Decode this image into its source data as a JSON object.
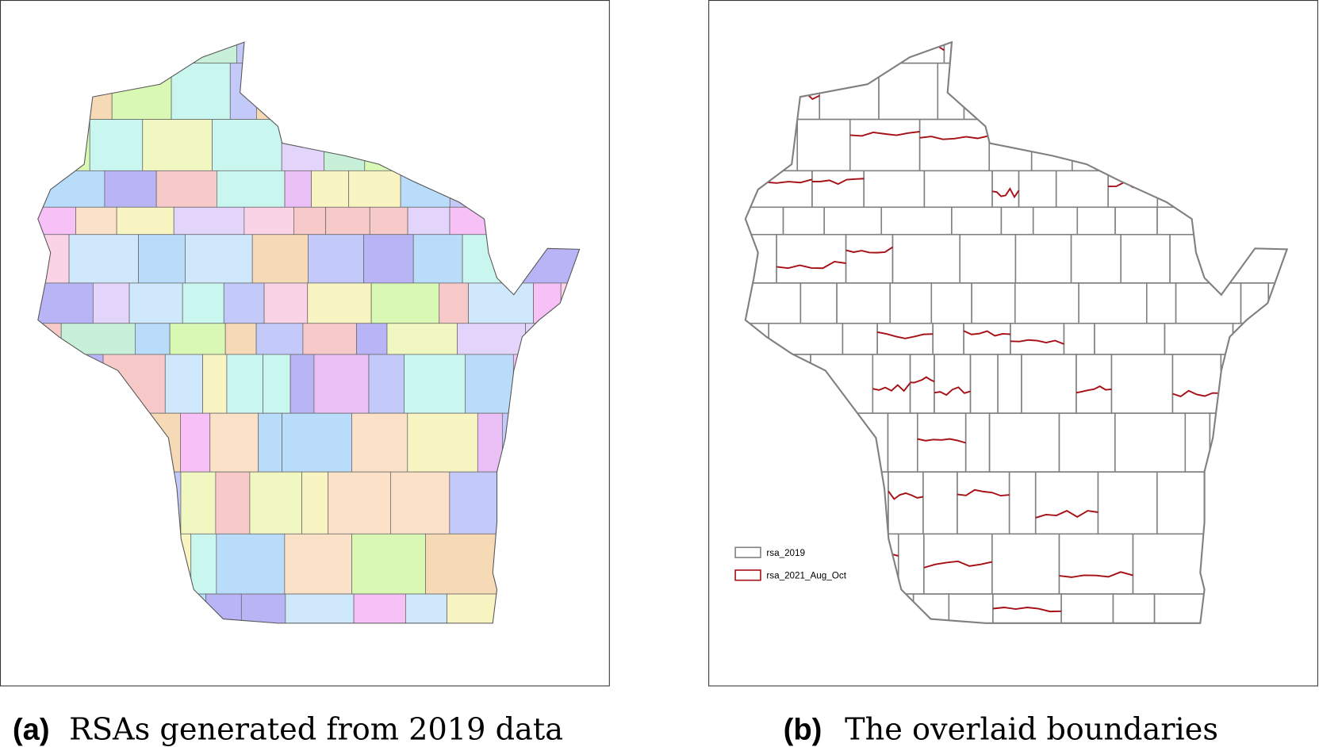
{
  "panels": [
    {
      "label": "(a)",
      "caption": "RSAs generated from 2019 data"
    },
    {
      "label": "(b)",
      "caption": "The overlaid boundaries",
      "legend": [
        {
          "name": "rsa_2019",
          "color": "#808080"
        },
        {
          "name": "rsa_2021_Aug_Oct",
          "color": "#a50f15"
        }
      ]
    }
  ]
}
